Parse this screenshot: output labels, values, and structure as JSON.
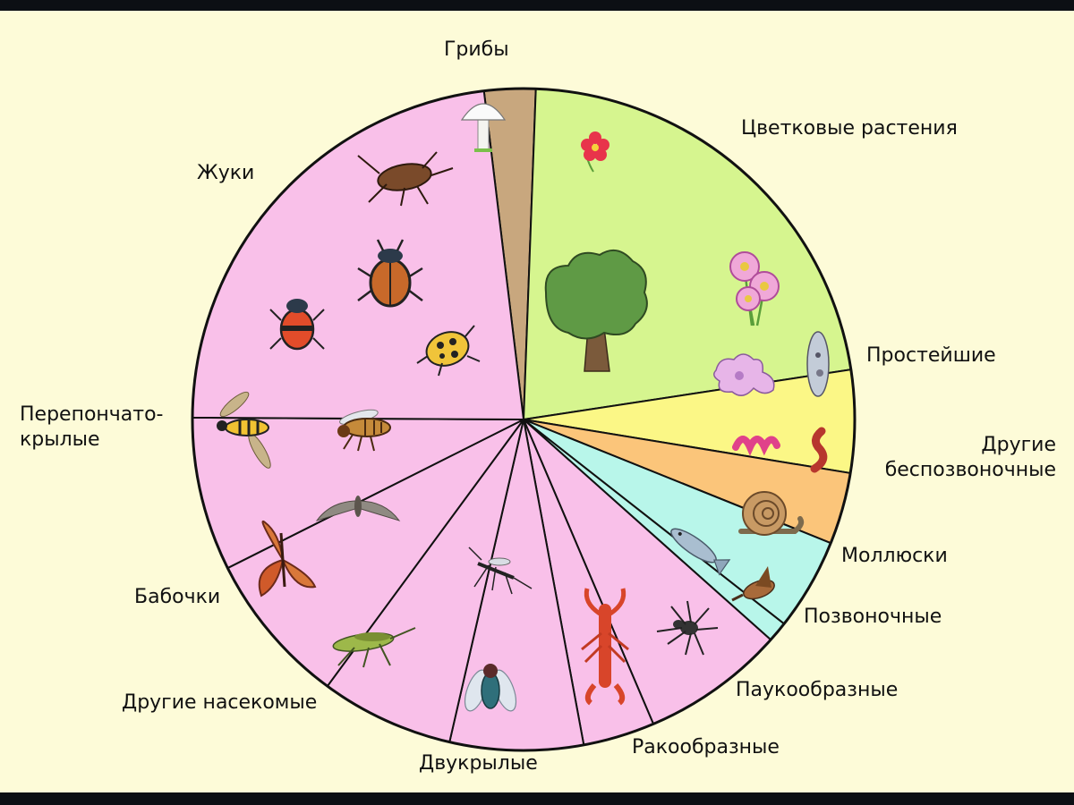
{
  "chart_data": {
    "type": "pie",
    "title": "",
    "slices": [
      {
        "label": "Грибы",
        "value": 2.5,
        "color": "#c8a77e"
      },
      {
        "label": "Цветковые растения",
        "value": 22.0,
        "color": "#d6f58f"
      },
      {
        "label": "Простейшие",
        "value": 5.0,
        "color": "#fbf786"
      },
      {
        "label": "Другие беспозвоночные",
        "value": 3.5,
        "color": "#fbc57a"
      },
      {
        "label": "Моллюски",
        "value": 4.5,
        "color": "#b8f6ea"
      },
      {
        "label": "Позвоночные",
        "value": 1.0,
        "color": "#b8f6ea"
      },
      {
        "label": "Паукообразные",
        "value": 7.0,
        "color": "#f9c0e9"
      },
      {
        "label": "Ракообразные",
        "value": 3.5,
        "color": "#f9c0e9"
      },
      {
        "label": "Двукрылые",
        "value": 6.5,
        "color": "#f9c0e9"
      },
      {
        "label": "Другие насекомые",
        "value": 6.5,
        "color": "#f9c0e9"
      },
      {
        "label": "Бабочки",
        "value": 7.5,
        "color": "#f9c0e9"
      },
      {
        "label": "Перепончато-крылые",
        "value": 7.5,
        "color": "#f9c0e9"
      },
      {
        "label": "Жуки",
        "value": 23.0,
        "color": "#f9c0e9"
      }
    ]
  },
  "labels": {
    "griby": "Грибы",
    "cvetkovye": "Цветковые растения",
    "prosteishie": "Простейшие",
    "drugie_bespozv_1": "Другие",
    "drugie_bespozv_2": "беспозвоночные",
    "mollyuski": "Моллюски",
    "pozvonochnye": "Позвоночные",
    "paukoobraznye": "Паукообразные",
    "rakoobraznye": "Ракообразные",
    "dvukrylye": "Двукрылые",
    "drugie_nasekomye": "Другие насекомые",
    "babochki": "Бабочки",
    "pereponchato_1": "Перепончато-",
    "pereponchato_2": "крылые",
    "zhuki": "Жуки"
  },
  "icons": [
    "mushroom-icon",
    "flower-icon",
    "tree-icon",
    "aster-flowers-icon",
    "amoeba-icon",
    "paramecium-icon",
    "worm-icon",
    "snail-icon",
    "fish-icon",
    "bird-icon",
    "spider-icon",
    "crayfish-icon",
    "fly-icon",
    "mosquito-icon",
    "grasshopper-icon",
    "moth-icon",
    "butterfly-icon",
    "wasp-icon",
    "bee-icon",
    "cockroach-icon",
    "ground-beetle-icon",
    "ladybird-icon",
    "spotted-beetle-icon"
  ],
  "colors": {
    "background": "#fdfbd8",
    "outline": "#111111"
  }
}
